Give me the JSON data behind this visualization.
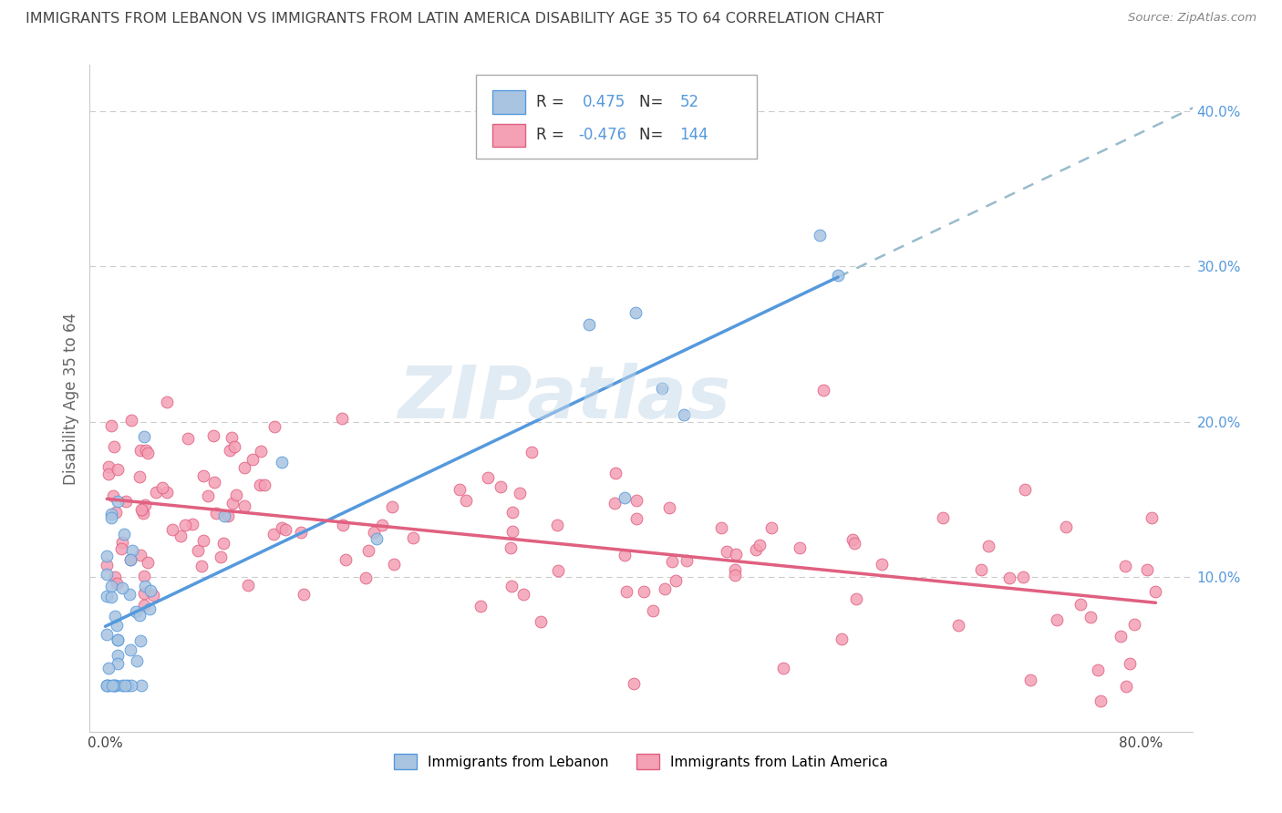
{
  "title": "IMMIGRANTS FROM LEBANON VS IMMIGRANTS FROM LATIN AMERICA DISABILITY AGE 35 TO 64 CORRELATION CHART",
  "source": "Source: ZipAtlas.com",
  "ylabel": "Disability Age 35 to 64",
  "y_tick_labels_right": [
    "10.0%",
    "20.0%",
    "30.0%",
    "40.0%"
  ],
  "lebanon_color": "#a8c4e0",
  "latin_color": "#f4a0b5",
  "lebanon_line_color": "#5599dd",
  "latin_line_color": "#e06080",
  "dashed_line_color": "#99bbcc",
  "watermark": "ZIPatlas",
  "legend_label1": "Immigrants from Lebanon",
  "legend_label2": "Immigrants from Latin America",
  "background_color": "#ffffff",
  "grid_color": "#cccccc",
  "text_color_blue": "#5599dd",
  "text_color_dark": "#333333",
  "title_color": "#444444",
  "source_color": "#888888"
}
